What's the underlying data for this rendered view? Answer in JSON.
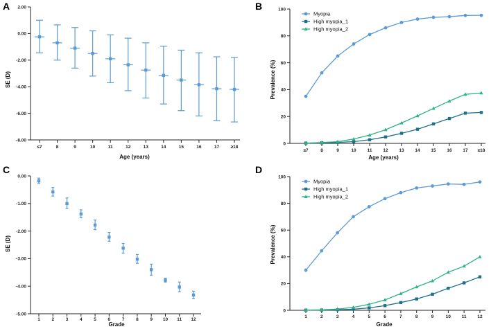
{
  "colors": {
    "myopia": "#5b9bd5",
    "high1": "#1f6f8b",
    "high2": "#2db383",
    "se": "#5b9bd5",
    "axis": "#222222"
  },
  "chart_data": [
    {
      "panel": "A",
      "type": "scatter",
      "xlabel": "Age (years)",
      "ylabel": "SE (D)",
      "categories": [
        "≤7",
        "8",
        "9",
        "10",
        "11",
        "12",
        "13",
        "14",
        "15",
        "16",
        "17",
        "≥18"
      ],
      "values": [
        -0.25,
        -0.7,
        -1.1,
        -1.5,
        -1.9,
        -2.35,
        -2.75,
        -3.15,
        -3.5,
        -3.85,
        -4.15,
        -4.2
      ],
      "err_low": [
        -1.45,
        -2.0,
        -2.6,
        -3.2,
        -3.7,
        -4.3,
        -4.85,
        -5.3,
        -5.8,
        -6.2,
        -6.55,
        -6.65
      ],
      "err_high": [
        1.0,
        0.65,
        0.45,
        0.2,
        -0.1,
        -0.35,
        -0.7,
        -0.95,
        -1.25,
        -1.45,
        -1.75,
        -1.8
      ],
      "ylim": [
        -8,
        2
      ],
      "yticks": [
        "2.00",
        "0.00",
        "-2.00",
        "-4.00",
        "-6.00",
        "-8.00"
      ],
      "ytick_values": [
        2,
        0,
        -2,
        -4,
        -6,
        -8
      ]
    },
    {
      "panel": "B",
      "type": "line",
      "xlabel": "Age (years)",
      "ylabel": "Prevalence (%)",
      "categories": [
        "≤7",
        "8",
        "9",
        "10",
        "11",
        "12",
        "13",
        "14",
        "15",
        "16",
        "17",
        "≥18"
      ],
      "ylim": [
        0,
        100
      ],
      "yticks": [
        "0",
        "20",
        "40",
        "60",
        "80",
        "100"
      ],
      "ytick_values": [
        0,
        20,
        40,
        60,
        80,
        100
      ],
      "legend": "top-left",
      "series": [
        {
          "name": "Myopia",
          "marker": "circle",
          "values": [
            35,
            52.5,
            65,
            74,
            81,
            86,
            90,
            92.5,
            93.8,
            94.3,
            95.2,
            95.3
          ]
        },
        {
          "name": "High myopia_1",
          "marker": "square",
          "values": [
            0.2,
            0.4,
            0.7,
            1.3,
            2.7,
            4.8,
            7.5,
            10.5,
            14.5,
            18.5,
            22.5,
            23
          ]
        },
        {
          "name": "High myopia_2",
          "marker": "triangle",
          "values": [
            0.2,
            0.6,
            1.3,
            3.2,
            6.2,
            10.2,
            15.2,
            20.5,
            26,
            31.5,
            36.5,
            37.5
          ]
        }
      ]
    },
    {
      "panel": "C",
      "type": "scatter",
      "xlabel": "Grade",
      "ylabel": "SE (D)",
      "categories": [
        "1",
        "2",
        "3",
        "4",
        "5",
        "6",
        "7",
        "8",
        "9",
        "10",
        "11",
        "12"
      ],
      "values": [
        -0.18,
        -0.58,
        -1.0,
        -1.38,
        -1.78,
        -2.22,
        -2.62,
        -3.02,
        -3.4,
        -3.78,
        -4.03,
        -4.32
      ],
      "err_low": [
        -0.27,
        -0.73,
        -1.18,
        -1.52,
        -1.95,
        -2.37,
        -2.8,
        -3.17,
        -3.6,
        -3.85,
        -4.2,
        -4.45
      ],
      "err_high": [
        -0.08,
        -0.42,
        -0.8,
        -1.23,
        -1.6,
        -2.05,
        -2.45,
        -2.85,
        -3.2,
        -3.71,
        -3.85,
        -4.18
      ],
      "ylim": [
        -5,
        0
      ],
      "yticks": [
        "0.00",
        "-1.00",
        "-2.00",
        "-3.00",
        "-4.00",
        "-5.00"
      ],
      "ytick_values": [
        0,
        -1,
        -2,
        -3,
        -4,
        -5
      ]
    },
    {
      "panel": "D",
      "type": "line",
      "xlabel": "Grade",
      "ylabel": "Prevalence (%)",
      "categories": [
        "1",
        "2",
        "3",
        "4",
        "5",
        "6",
        "7",
        "8",
        "9",
        "10",
        "11",
        "12"
      ],
      "ylim": [
        0,
        100
      ],
      "yticks": [
        "0",
        "20",
        "40",
        "60",
        "80",
        "100"
      ],
      "ytick_values": [
        0,
        20,
        40,
        60,
        80,
        100
      ],
      "legend": "top-left",
      "series": [
        {
          "name": "Myopia",
          "marker": "circle",
          "values": [
            30,
            44.5,
            58,
            70,
            77.5,
            83.5,
            88,
            91.5,
            93,
            94.5,
            94.2,
            96
          ]
        },
        {
          "name": "High myopia_1",
          "marker": "square",
          "values": [
            0.1,
            0.2,
            0.4,
            0.8,
            1.8,
            3.5,
            5.8,
            8.5,
            12,
            16.5,
            20.5,
            25
          ]
        },
        {
          "name": "High myopia_2",
          "marker": "triangle",
          "values": [
            0.2,
            0.4,
            0.9,
            2.2,
            4.5,
            7.8,
            12.5,
            17.5,
            22,
            28.5,
            33,
            40
          ]
        }
      ]
    }
  ]
}
